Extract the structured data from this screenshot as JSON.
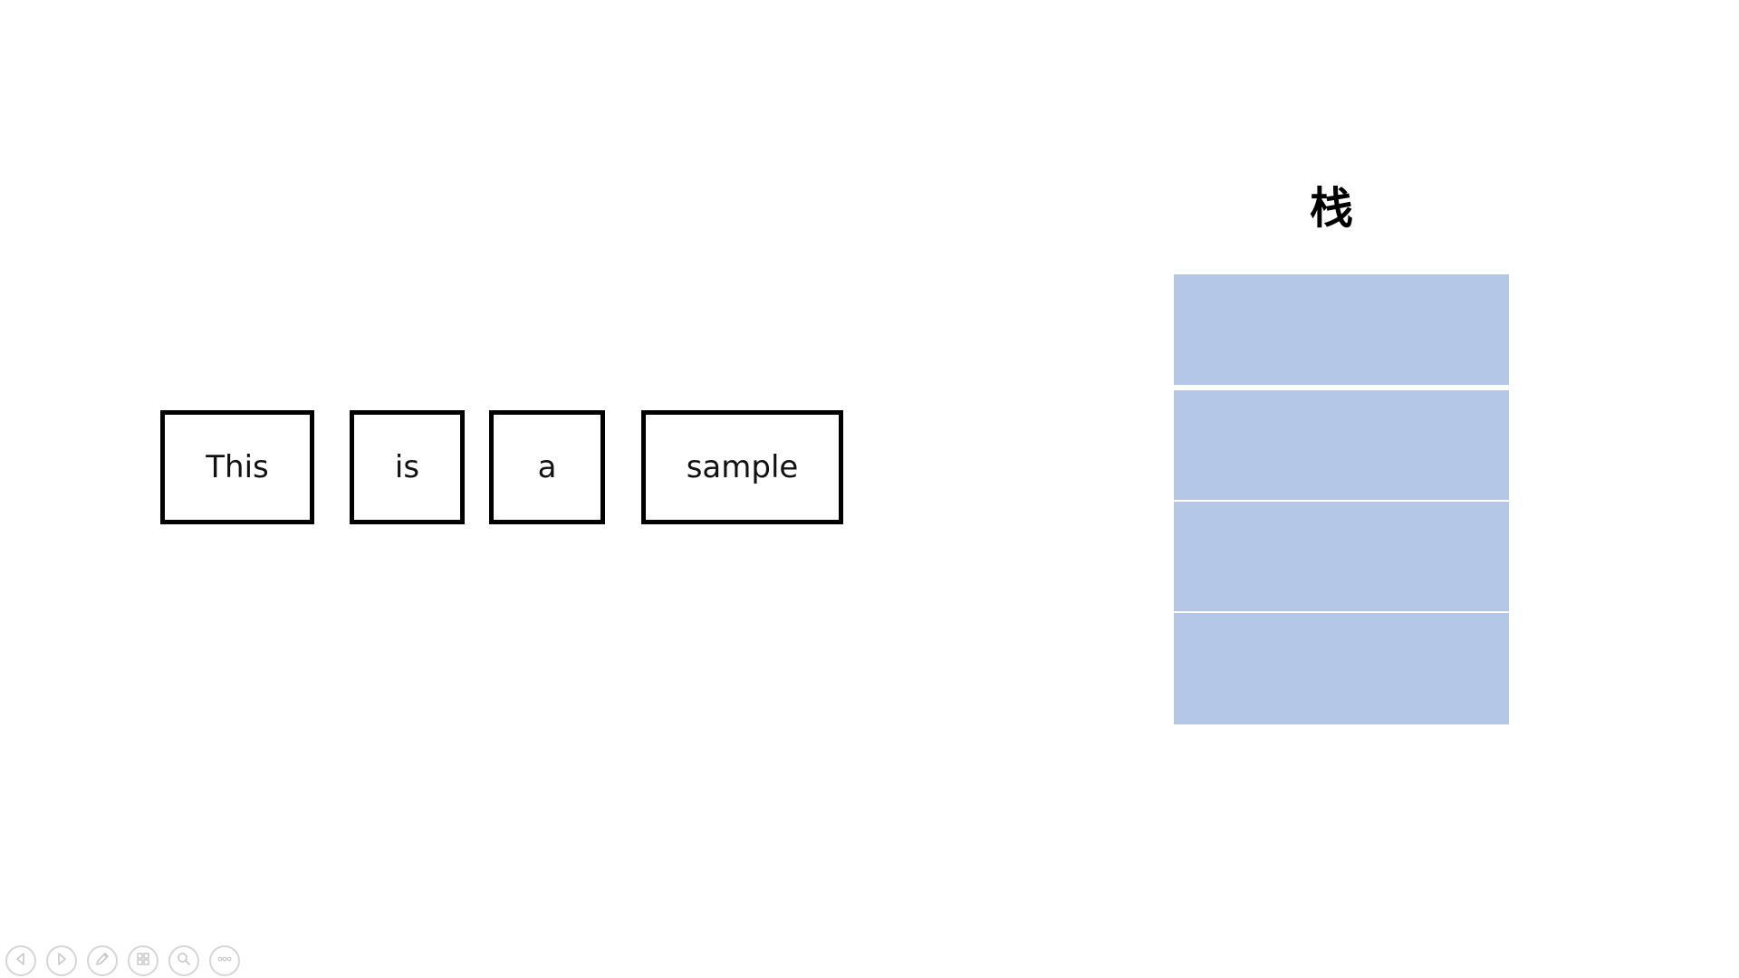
{
  "words": [
    "This",
    "is",
    "a",
    "sample"
  ],
  "stack": {
    "title": "栈",
    "cell_count": 4,
    "cell_color": "#b4c7e7"
  },
  "presenter_controls": [
    {
      "icon": "previous-slide-icon"
    },
    {
      "icon": "next-slide-icon"
    },
    {
      "icon": "pen-icon"
    },
    {
      "icon": "slide-grid-icon"
    },
    {
      "icon": "zoom-icon"
    },
    {
      "icon": "more-options-icon"
    }
  ],
  "colors": {
    "background": "#ffffff",
    "box_border": "#000000",
    "stack_fill": "#b4c7e7",
    "control_outline": "#d6d6d6"
  }
}
